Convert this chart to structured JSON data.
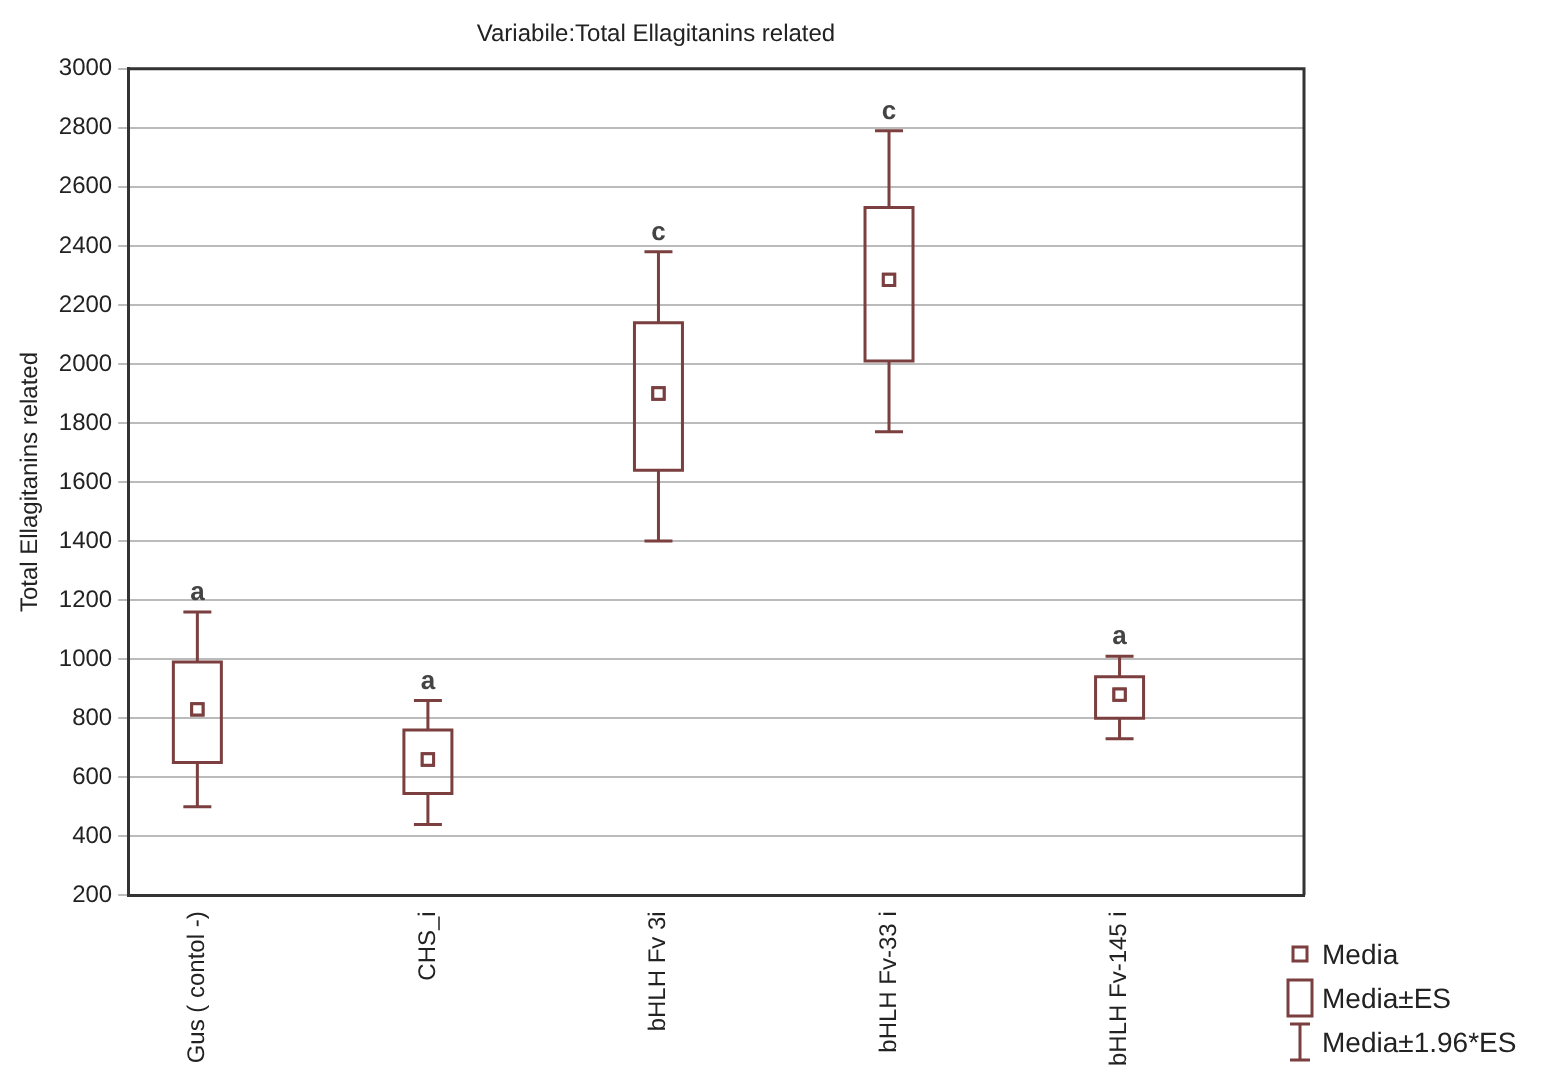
{
  "chart_data": {
    "type": "box",
    "title": "Variabile:Total Ellagitanins related",
    "ylabel": "Total Ellagitanins related",
    "categories": [
      "Gus ( contol -)",
      "CHS_i",
      "bHLH Fv 3i",
      "bHLH Fv-33 i",
      "bHLH Fv-145 i"
    ],
    "color": "#7b3f3f",
    "marker": "square",
    "grid": "y",
    "ylim": [
      200,
      3000
    ],
    "yticks": [
      200,
      400,
      600,
      800,
      1000,
      1200,
      1400,
      1600,
      1800,
      2000,
      2200,
      2400,
      2600,
      2800,
      3000
    ],
    "boxes": [
      {
        "low": 500,
        "q1": 650,
        "median": 830,
        "q3": 990,
        "high": 1160
      },
      {
        "low": 440,
        "q1": 545,
        "median": 660,
        "q3": 760,
        "high": 860
      },
      {
        "low": 1400,
        "q1": 1640,
        "median": 1900,
        "q3": 2140,
        "high": 2380
      },
      {
        "low": 1770,
        "q1": 2010,
        "median": 2285,
        "q3": 2530,
        "high": 2790
      },
      {
        "low": 730,
        "q1": 800,
        "median": 880,
        "q3": 940,
        "high": 1010
      }
    ],
    "annotations": [
      {
        "text": "a",
        "x": "Gus ( contol -)",
        "y": 1160
      },
      {
        "text": "a",
        "x": "CHS_i",
        "y": 860
      },
      {
        "text": "c",
        "x": "bHLH Fv 3i",
        "y": 2380
      },
      {
        "text": "c",
        "x": "bHLH Fv-33 i",
        "y": 2790
      },
      {
        "text": "a",
        "x": "bHLH Fv-145 i",
        "y": 1010
      },
      "Media",
      "Media±ES",
      "Media±1.96*ES"
    ]
  }
}
